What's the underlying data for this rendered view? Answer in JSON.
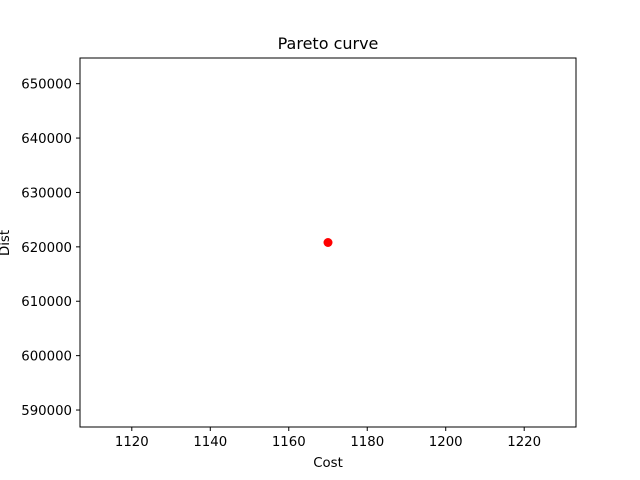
{
  "chart_data": {
    "type": "scatter",
    "title": "Pareto curve",
    "xlabel": "Cost",
    "ylabel": "Dist",
    "x": [
      1170
    ],
    "y": [
      620800
    ],
    "xlim": [
      1106.8,
      1233.2
    ],
    "ylim": [
      586880,
      654720
    ],
    "xticks": [
      1120,
      1140,
      1160,
      1180,
      1200,
      1220
    ],
    "xtick_labels": [
      "1120",
      "1140",
      "1160",
      "1180",
      "1200",
      "1220"
    ],
    "yticks": [
      590000,
      600000,
      610000,
      620000,
      630000,
      640000,
      650000
    ],
    "ytick_labels": [
      "590000",
      "600000",
      "610000",
      "620000",
      "630000",
      "640000",
      "650000"
    ],
    "marker_color": "#ff0000",
    "grid": false,
    "legend": "none"
  }
}
